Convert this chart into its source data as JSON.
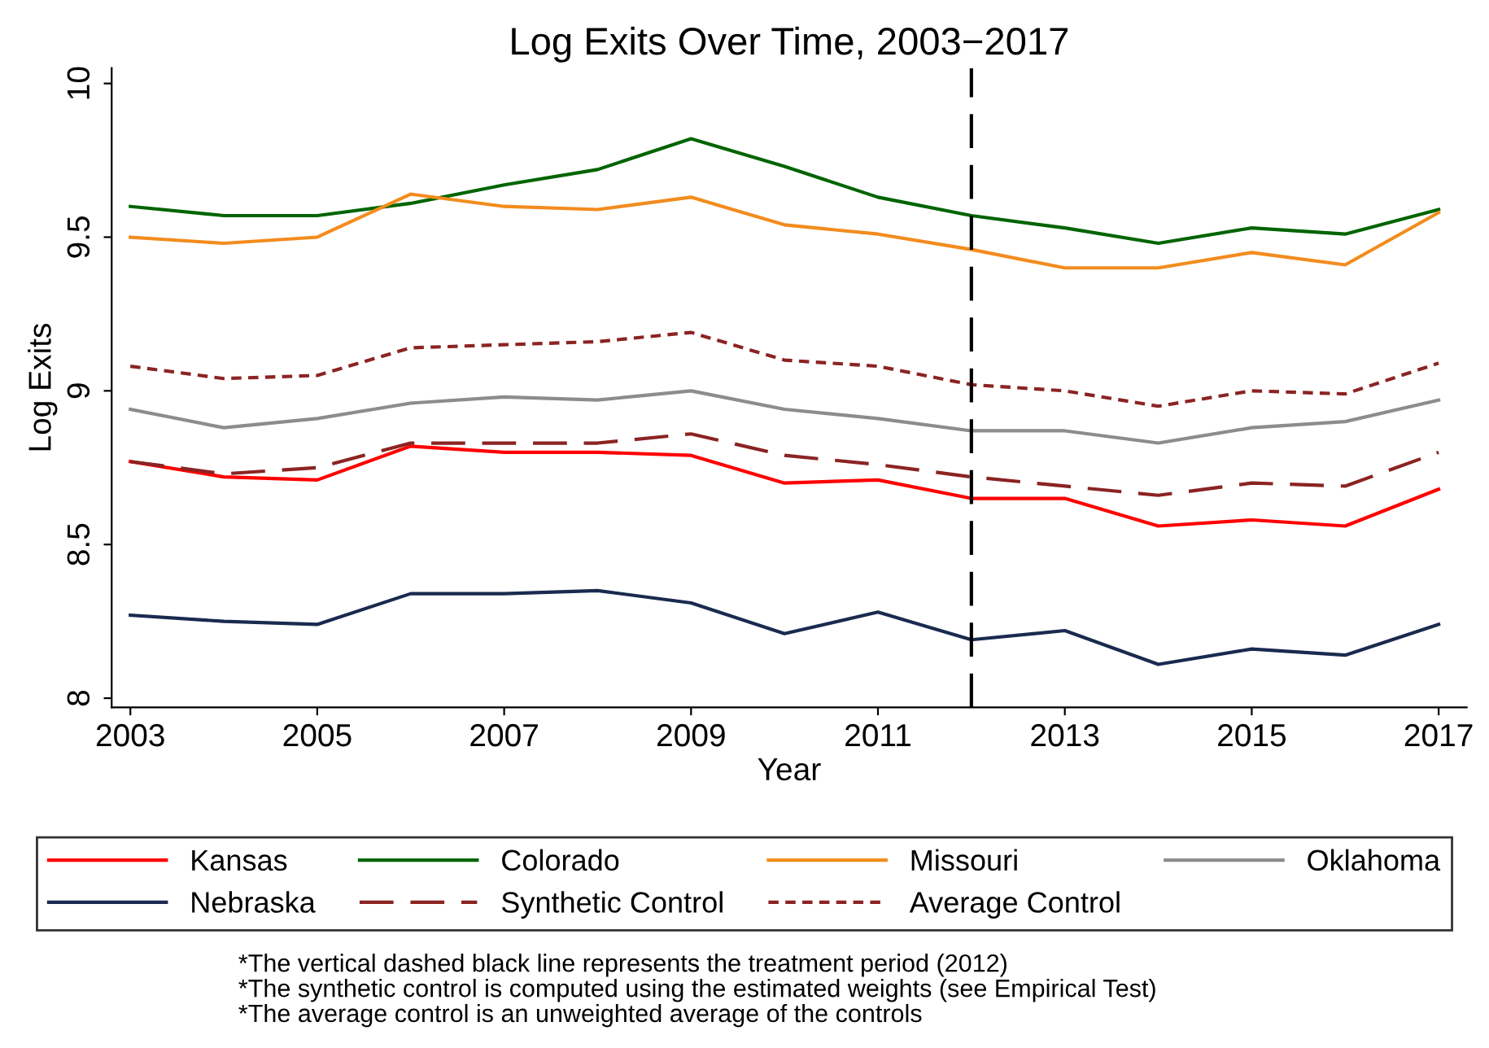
{
  "chart_data": {
    "type": "line",
    "title": "Log Exits Over Time, 2003−2017",
    "xlabel": "Year",
    "ylabel": "Log Exits",
    "x": [
      2003,
      2004,
      2005,
      2006,
      2007,
      2008,
      2009,
      2010,
      2011,
      2012,
      2013,
      2014,
      2015,
      2016,
      2017
    ],
    "xlim": [
      2002.8,
      2017.3
    ],
    "xticks": [
      2003,
      2005,
      2007,
      2009,
      2011,
      2013,
      2015,
      2017
    ],
    "ylim": [
      7.97,
      10.05
    ],
    "yticks": [
      {
        "value": 8,
        "label": "8"
      },
      8.5,
      {
        "value": 9,
        "label": "9"
      },
      9.5,
      {
        "value": 10,
        "label": "10"
      }
    ],
    "grid": false,
    "legend": "bottom",
    "ref_lines": [
      {
        "axis": "x",
        "value": 2012,
        "color": "#000000",
        "line_style": "dashed"
      }
    ],
    "series": [
      {
        "name": "Kansas",
        "color": "#ff0000",
        "line_style": "solid",
        "values": [
          8.77,
          8.72,
          8.71,
          8.82,
          8.8,
          8.8,
          8.79,
          8.7,
          8.71,
          8.65,
          8.65,
          8.56,
          8.58,
          8.56,
          8.68
        ]
      },
      {
        "name": "Colorado",
        "color": "#006400",
        "line_style": "solid",
        "values": [
          9.6,
          9.57,
          9.57,
          9.61,
          9.67,
          9.72,
          9.82,
          9.73,
          9.63,
          9.57,
          9.53,
          9.48,
          9.53,
          9.51,
          9.59
        ]
      },
      {
        "name": "Missouri",
        "color": "#f28c1e",
        "line_style": "solid",
        "values": [
          9.5,
          9.48,
          9.5,
          9.64,
          9.6,
          9.59,
          9.63,
          9.54,
          9.51,
          9.46,
          9.4,
          9.4,
          9.45,
          9.41,
          9.58
        ]
      },
      {
        "name": "Oklahoma",
        "color": "#8c8c8c",
        "line_style": "solid",
        "values": [
          8.94,
          8.88,
          8.91,
          8.96,
          8.98,
          8.97,
          9.0,
          8.94,
          8.91,
          8.87,
          8.87,
          8.83,
          8.88,
          8.9,
          8.97
        ]
      },
      {
        "name": "Nebraska",
        "color": "#1a2a4f",
        "line_style": "solid",
        "values": [
          8.27,
          8.25,
          8.24,
          8.34,
          8.34,
          8.35,
          8.31,
          8.21,
          8.28,
          8.19,
          8.22,
          8.11,
          8.16,
          8.14,
          8.24
        ]
      },
      {
        "name": "Synthetic Control",
        "color": "#8b2323",
        "line_style": "dashed",
        "values": [
          8.77,
          8.73,
          8.75,
          8.83,
          8.83,
          8.83,
          8.86,
          8.79,
          8.76,
          8.72,
          8.69,
          8.66,
          8.7,
          8.69,
          8.8
        ]
      },
      {
        "name": "Average Control",
        "color": "#8b2323",
        "line_style": "dotted",
        "values": [
          9.08,
          9.04,
          9.05,
          9.14,
          9.15,
          9.16,
          9.19,
          9.1,
          9.08,
          9.02,
          9.0,
          8.95,
          9.0,
          8.99,
          9.09
        ]
      }
    ],
    "annotations": [
      "*The vertical dashed black line represents the treatment period (2012)",
      "*The synthetic control is computed using the estimated weights (see Empirical Test)",
      "*The average control is an unweighted average of the controls"
    ]
  }
}
